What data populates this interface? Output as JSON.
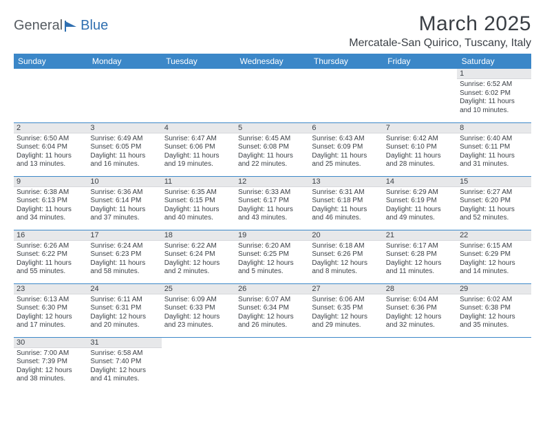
{
  "logo": {
    "word1": "General",
    "word2": "Blue"
  },
  "title": "March 2025",
  "location": "Mercatale-San Quirico, Tuscany, Italy",
  "colors": {
    "header_bg": "#3b87c8",
    "header_text": "#ffffff",
    "daynum_bg": "#e7e8ea",
    "text": "#3a3f45",
    "rule": "#3b87c8",
    "logo_gray": "#555b61",
    "logo_blue": "#2f6fb0"
  },
  "weekdays": [
    "Sunday",
    "Monday",
    "Tuesday",
    "Wednesday",
    "Thursday",
    "Friday",
    "Saturday"
  ],
  "weeks": [
    [
      null,
      null,
      null,
      null,
      null,
      null,
      {
        "n": "1",
        "sr": "Sunrise: 6:52 AM",
        "ss": "Sunset: 6:02 PM",
        "d1": "Daylight: 11 hours",
        "d2": "and 10 minutes."
      }
    ],
    [
      {
        "n": "2",
        "sr": "Sunrise: 6:50 AM",
        "ss": "Sunset: 6:04 PM",
        "d1": "Daylight: 11 hours",
        "d2": "and 13 minutes."
      },
      {
        "n": "3",
        "sr": "Sunrise: 6:49 AM",
        "ss": "Sunset: 6:05 PM",
        "d1": "Daylight: 11 hours",
        "d2": "and 16 minutes."
      },
      {
        "n": "4",
        "sr": "Sunrise: 6:47 AM",
        "ss": "Sunset: 6:06 PM",
        "d1": "Daylight: 11 hours",
        "d2": "and 19 minutes."
      },
      {
        "n": "5",
        "sr": "Sunrise: 6:45 AM",
        "ss": "Sunset: 6:08 PM",
        "d1": "Daylight: 11 hours",
        "d2": "and 22 minutes."
      },
      {
        "n": "6",
        "sr": "Sunrise: 6:43 AM",
        "ss": "Sunset: 6:09 PM",
        "d1": "Daylight: 11 hours",
        "d2": "and 25 minutes."
      },
      {
        "n": "7",
        "sr": "Sunrise: 6:42 AM",
        "ss": "Sunset: 6:10 PM",
        "d1": "Daylight: 11 hours",
        "d2": "and 28 minutes."
      },
      {
        "n": "8",
        "sr": "Sunrise: 6:40 AM",
        "ss": "Sunset: 6:11 PM",
        "d1": "Daylight: 11 hours",
        "d2": "and 31 minutes."
      }
    ],
    [
      {
        "n": "9",
        "sr": "Sunrise: 6:38 AM",
        "ss": "Sunset: 6:13 PM",
        "d1": "Daylight: 11 hours",
        "d2": "and 34 minutes."
      },
      {
        "n": "10",
        "sr": "Sunrise: 6:36 AM",
        "ss": "Sunset: 6:14 PM",
        "d1": "Daylight: 11 hours",
        "d2": "and 37 minutes."
      },
      {
        "n": "11",
        "sr": "Sunrise: 6:35 AM",
        "ss": "Sunset: 6:15 PM",
        "d1": "Daylight: 11 hours",
        "d2": "and 40 minutes."
      },
      {
        "n": "12",
        "sr": "Sunrise: 6:33 AM",
        "ss": "Sunset: 6:17 PM",
        "d1": "Daylight: 11 hours",
        "d2": "and 43 minutes."
      },
      {
        "n": "13",
        "sr": "Sunrise: 6:31 AM",
        "ss": "Sunset: 6:18 PM",
        "d1": "Daylight: 11 hours",
        "d2": "and 46 minutes."
      },
      {
        "n": "14",
        "sr": "Sunrise: 6:29 AM",
        "ss": "Sunset: 6:19 PM",
        "d1": "Daylight: 11 hours",
        "d2": "and 49 minutes."
      },
      {
        "n": "15",
        "sr": "Sunrise: 6:27 AM",
        "ss": "Sunset: 6:20 PM",
        "d1": "Daylight: 11 hours",
        "d2": "and 52 minutes."
      }
    ],
    [
      {
        "n": "16",
        "sr": "Sunrise: 6:26 AM",
        "ss": "Sunset: 6:22 PM",
        "d1": "Daylight: 11 hours",
        "d2": "and 55 minutes."
      },
      {
        "n": "17",
        "sr": "Sunrise: 6:24 AM",
        "ss": "Sunset: 6:23 PM",
        "d1": "Daylight: 11 hours",
        "d2": "and 58 minutes."
      },
      {
        "n": "18",
        "sr": "Sunrise: 6:22 AM",
        "ss": "Sunset: 6:24 PM",
        "d1": "Daylight: 12 hours",
        "d2": "and 2 minutes."
      },
      {
        "n": "19",
        "sr": "Sunrise: 6:20 AM",
        "ss": "Sunset: 6:25 PM",
        "d1": "Daylight: 12 hours",
        "d2": "and 5 minutes."
      },
      {
        "n": "20",
        "sr": "Sunrise: 6:18 AM",
        "ss": "Sunset: 6:26 PM",
        "d1": "Daylight: 12 hours",
        "d2": "and 8 minutes."
      },
      {
        "n": "21",
        "sr": "Sunrise: 6:17 AM",
        "ss": "Sunset: 6:28 PM",
        "d1": "Daylight: 12 hours",
        "d2": "and 11 minutes."
      },
      {
        "n": "22",
        "sr": "Sunrise: 6:15 AM",
        "ss": "Sunset: 6:29 PM",
        "d1": "Daylight: 12 hours",
        "d2": "and 14 minutes."
      }
    ],
    [
      {
        "n": "23",
        "sr": "Sunrise: 6:13 AM",
        "ss": "Sunset: 6:30 PM",
        "d1": "Daylight: 12 hours",
        "d2": "and 17 minutes."
      },
      {
        "n": "24",
        "sr": "Sunrise: 6:11 AM",
        "ss": "Sunset: 6:31 PM",
        "d1": "Daylight: 12 hours",
        "d2": "and 20 minutes."
      },
      {
        "n": "25",
        "sr": "Sunrise: 6:09 AM",
        "ss": "Sunset: 6:33 PM",
        "d1": "Daylight: 12 hours",
        "d2": "and 23 minutes."
      },
      {
        "n": "26",
        "sr": "Sunrise: 6:07 AM",
        "ss": "Sunset: 6:34 PM",
        "d1": "Daylight: 12 hours",
        "d2": "and 26 minutes."
      },
      {
        "n": "27",
        "sr": "Sunrise: 6:06 AM",
        "ss": "Sunset: 6:35 PM",
        "d1": "Daylight: 12 hours",
        "d2": "and 29 minutes."
      },
      {
        "n": "28",
        "sr": "Sunrise: 6:04 AM",
        "ss": "Sunset: 6:36 PM",
        "d1": "Daylight: 12 hours",
        "d2": "and 32 minutes."
      },
      {
        "n": "29",
        "sr": "Sunrise: 6:02 AM",
        "ss": "Sunset: 6:38 PM",
        "d1": "Daylight: 12 hours",
        "d2": "and 35 minutes."
      }
    ],
    [
      {
        "n": "30",
        "sr": "Sunrise: 7:00 AM",
        "ss": "Sunset: 7:39 PM",
        "d1": "Daylight: 12 hours",
        "d2": "and 38 minutes."
      },
      {
        "n": "31",
        "sr": "Sunrise: 6:58 AM",
        "ss": "Sunset: 7:40 PM",
        "d1": "Daylight: 12 hours",
        "d2": "and 41 minutes."
      },
      null,
      null,
      null,
      null,
      null
    ]
  ]
}
